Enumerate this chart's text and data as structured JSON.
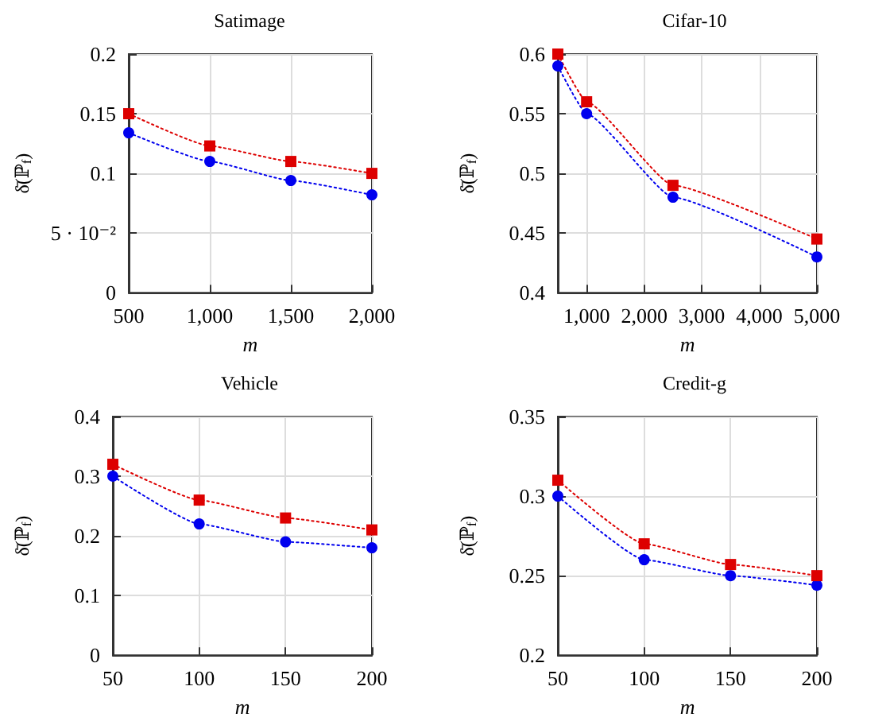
{
  "chart_data": [
    {
      "type": "line",
      "title": "Satimage",
      "xlabel": "m",
      "ylabel": "δ̄(ℙ$_{f}$)",
      "x": [
        500,
        1000,
        1500,
        2000
      ],
      "xlim": [
        500,
        2000
      ],
      "xticks": [
        500,
        {
          "value": 1000,
          "label": "1,000"
        },
        {
          "value": 1500,
          "label": "1,500"
        },
        {
          "value": 2000,
          "label": "2,000"
        }
      ],
      "ylim": [
        0,
        0.2
      ],
      "yticks": [
        0,
        {
          "value": 0.05,
          "label": "5 · 10⁻²"
        },
        0.1,
        0.15,
        0.2
      ],
      "grid": true,
      "line_style": "dotted",
      "series": [
        {
          "color": "#0000ee",
          "marker": "circle",
          "values": [
            0.134,
            0.11,
            0.094,
            0.082
          ]
        },
        {
          "color": "#dd0000",
          "marker": "square",
          "values": [
            0.15,
            0.123,
            0.11,
            0.1
          ]
        }
      ]
    },
    {
      "type": "line",
      "title": "Cifar-10",
      "xlabel": "m",
      "ylabel": "δ̄(ℙ$_{f}$)",
      "x": [
        500,
        1000,
        2500,
        5000
      ],
      "xlim": [
        500,
        5000
      ],
      "xticks": [
        {
          "value": 1000,
          "label": "1,000"
        },
        {
          "value": 2000,
          "label": "2,000"
        },
        {
          "value": 3000,
          "label": "3,000"
        },
        {
          "value": 4000,
          "label": "4,000"
        },
        {
          "value": 5000,
          "label": "5,000"
        }
      ],
      "ylim": [
        0.4,
        0.6
      ],
      "yticks": [
        0.4,
        0.45,
        0.5,
        0.55,
        0.6
      ],
      "grid": true,
      "line_style": "dotted",
      "series": [
        {
          "color": "#0000ee",
          "marker": "circle",
          "values": [
            0.59,
            0.55,
            0.48,
            0.43
          ]
        },
        {
          "color": "#dd0000",
          "marker": "square",
          "values": [
            0.6,
            0.56,
            0.49,
            0.445
          ]
        }
      ]
    },
    {
      "type": "line",
      "title": "Vehicle",
      "xlabel": "m",
      "ylabel": "δ̄(ℙ$_{f}$)",
      "x": [
        50,
        100,
        150,
        200
      ],
      "xlim": [
        50,
        200
      ],
      "xticks": [
        50,
        100,
        150,
        200
      ],
      "ylim": [
        0,
        0.4
      ],
      "yticks": [
        0,
        0.1,
        0.2,
        0.3,
        0.4
      ],
      "grid": true,
      "line_style": "dotted",
      "series": [
        {
          "color": "#0000ee",
          "marker": "circle",
          "values": [
            0.3,
            0.22,
            0.19,
            0.18
          ]
        },
        {
          "color": "#dd0000",
          "marker": "square",
          "values": [
            0.32,
            0.26,
            0.23,
            0.21
          ]
        }
      ]
    },
    {
      "type": "line",
      "title": "Credit-g",
      "xlabel": "m",
      "ylabel": "δ̄(ℙ$_{f}$)",
      "x": [
        50,
        100,
        150,
        200
      ],
      "xlim": [
        50,
        200
      ],
      "xticks": [
        50,
        100,
        150,
        200
      ],
      "ylim": [
        0.2,
        0.35
      ],
      "yticks": [
        0.2,
        0.25,
        0.3,
        0.35
      ],
      "grid": true,
      "line_style": "dotted",
      "series": [
        {
          "color": "#0000ee",
          "marker": "circle",
          "values": [
            0.3,
            0.26,
            0.25,
            0.244
          ]
        },
        {
          "color": "#dd0000",
          "marker": "square",
          "values": [
            0.31,
            0.27,
            0.257,
            0.25
          ]
        }
      ]
    }
  ]
}
